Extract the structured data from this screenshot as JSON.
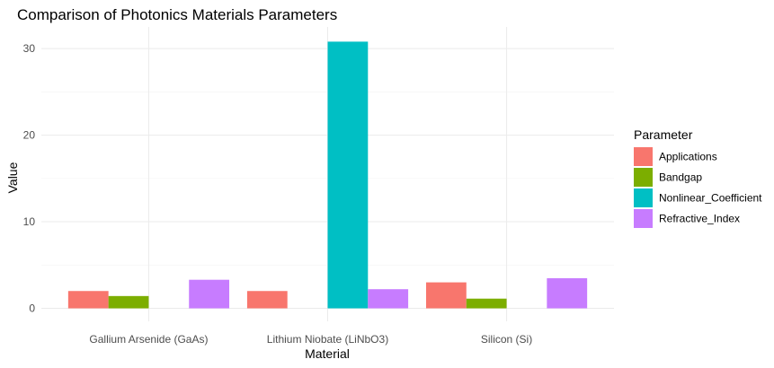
{
  "chart_data": {
    "type": "bar",
    "title": "Comparison of Photonics Materials Parameters",
    "xlabel": "Material",
    "ylabel": "Value",
    "categories": [
      "Gallium Arsenide (GaAs)",
      "Lithium Niobate (LiNbO3)",
      "Silicon (Si)"
    ],
    "series": [
      {
        "name": "Applications",
        "color": "#F8766D",
        "values": [
          2,
          2,
          3
        ]
      },
      {
        "name": "Bandgap",
        "color": "#7CAE00",
        "values": [
          1.42,
          0,
          1.12
        ]
      },
      {
        "name": "Nonlinear_Coefficient",
        "color": "#00BFC4",
        "values": [
          0,
          30.8,
          0
        ]
      },
      {
        "name": "Refractive_Index",
        "color": "#C77CFF",
        "values": [
          3.3,
          2.21,
          3.48
        ]
      }
    ],
    "ylim": [
      -1.5,
      32.5
    ],
    "yticks": [
      0,
      10,
      20,
      30
    ],
    "legend": {
      "title": "Parameter",
      "position": "right"
    },
    "grid": true
  }
}
